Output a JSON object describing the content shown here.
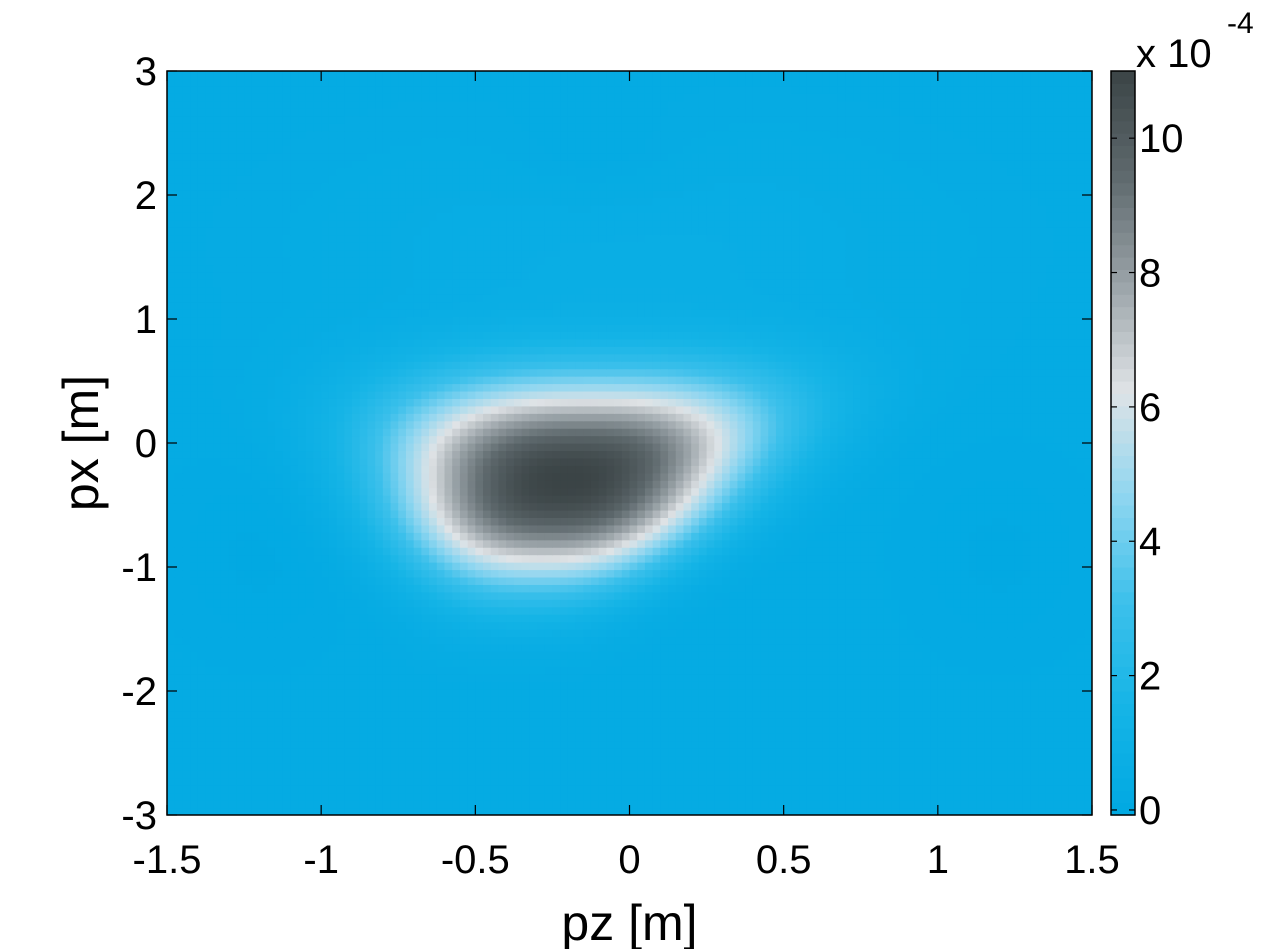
{
  "chart_data": {
    "type": "heatmap",
    "title": "",
    "xlabel": "pz [m]",
    "ylabel": "px [m]",
    "xlim": [
      -1.5,
      1.5
    ],
    "ylim": [
      -3,
      3
    ],
    "xticks": [
      "-1.5",
      "-1",
      "-0.5",
      "0",
      "0.5",
      "1",
      "1.5"
    ],
    "xtick_values": [
      -1.5,
      -1,
      -0.5,
      0,
      0.5,
      1,
      1.5
    ],
    "yticks": [
      "-3",
      "-2",
      "-1",
      "0",
      "1",
      "2",
      "3"
    ],
    "ytick_values": [
      -3,
      -2,
      -1,
      0,
      1,
      2,
      3
    ],
    "grid": false,
    "colormap": [
      "#00a8e2",
      "#15b4e6",
      "#3cc0eb",
      "#8fd6f0",
      "#dfe3e6",
      "#9aa3a8",
      "#5f6a6e",
      "#3b4446"
    ],
    "colorbar": {
      "range": [
        -7.5e-06,
        0.0011
      ],
      "multiplier": "x 10",
      "exponent": "-4",
      "ticks": [
        "0",
        "2",
        "4",
        "6",
        "8",
        "10"
      ],
      "tick_values": [
        0,
        0.0002,
        0.0004,
        0.0006,
        0.0008,
        0.001
      ]
    },
    "field": {
      "description_units": "value at (pz, px)",
      "peak": {
        "pz": -0.2,
        "px": -0.25,
        "value": 0.0011
      },
      "background": 3e-05
    }
  }
}
